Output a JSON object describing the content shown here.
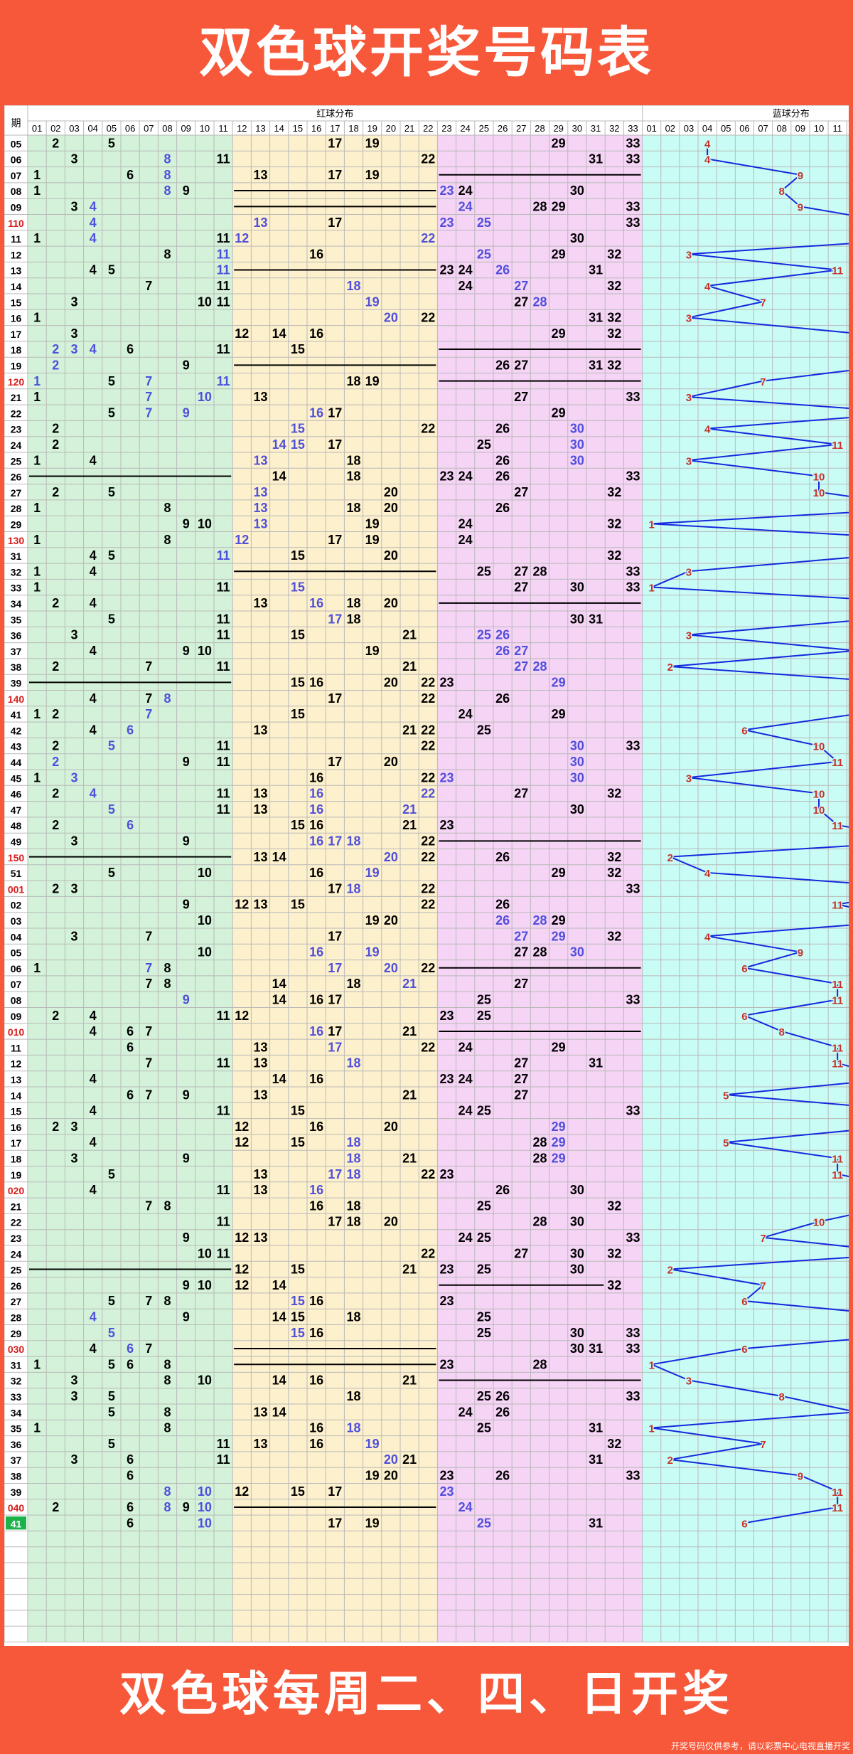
{
  "header": {
    "title": "双色球开奖号码表"
  },
  "footer": {
    "slogan": "双色球每周二、四、日开奖",
    "notice": "开奖号码仅供参考，请以彩票中心电视直播开奖"
  },
  "colors": {
    "banner": "#f7583a",
    "red_zone_a": "#d3f2d9",
    "red_zone_b": "#fdf0cc",
    "red_zone_c": "#f5d4f5",
    "blue_zone": "#c9fcf5",
    "grid_line": "#b9b9b9",
    "repeat_text": "#4f4fdc",
    "normal_text": "#000000",
    "blue_line": "#1528dd",
    "blue_num": "#c8302a",
    "period_highlight": "#d91b1b",
    "latest_period_bg": "#1bb24a"
  },
  "chart_data": {
    "type": "table",
    "title": "双色球开奖号码表",
    "columns": {
      "period": "期",
      "red_group": "红球分布",
      "blue_group": "蓝球分布"
    },
    "red_headers": [
      "01",
      "02",
      "03",
      "04",
      "05",
      "06",
      "07",
      "08",
      "09",
      "10",
      "11",
      "12",
      "13",
      "14",
      "15",
      "16",
      "17",
      "18",
      "19",
      "20",
      "21",
      "22",
      "23",
      "24",
      "25",
      "26",
      "27",
      "28",
      "29",
      "30",
      "31",
      "32",
      "33"
    ],
    "blue_headers": [
      "01",
      "02",
      "03",
      "04",
      "05",
      "06",
      "07",
      "08",
      "09",
      "10",
      "11",
      "12",
      "13",
      "14",
      "15",
      "16"
    ],
    "rows": [
      {
        "p": "05",
        "red": [
          2,
          5,
          17,
          19,
          29,
          33
        ],
        "rep": [],
        "blue": 4
      },
      {
        "p": "06",
        "red": [
          3,
          11,
          22,
          31,
          33
        ],
        "rep": [
          8
        ],
        "blue": 4
      },
      {
        "p": "07",
        "red": [
          1,
          6,
          13,
          17,
          19
        ],
        "rep": [
          8
        ],
        "blue": 9,
        "dash": [
          [
            23,
            33
          ]
        ]
      },
      {
        "p": "08",
        "red": [
          1,
          9,
          24,
          30
        ],
        "rep": [
          8,
          23
        ],
        "blue": 8,
        "dash": [
          [
            12,
            22
          ]
        ]
      },
      {
        "p": "09",
        "red": [
          3,
          28,
          29,
          33
        ],
        "rep": [
          4,
          24
        ],
        "blue": 9,
        "dash": [
          [
            12,
            22
          ]
        ]
      },
      {
        "p": "110",
        "red": [
          17,
          33
        ],
        "rep": [
          4,
          13,
          23,
          25
        ],
        "blue": 14,
        "hl": true
      },
      {
        "p": "11",
        "red": [
          1,
          11,
          30
        ],
        "rep": [
          4,
          12,
          22
        ],
        "blue": 16
      },
      {
        "p": "12",
        "red": [
          8,
          16,
          29,
          32
        ],
        "rep": [
          11,
          25
        ],
        "blue": 3
      },
      {
        "p": "13",
        "red": [
          4,
          5,
          23,
          24,
          31
        ],
        "rep": [
          11,
          26
        ],
        "blue": 11,
        "dash": [
          [
            12,
            22
          ]
        ]
      },
      {
        "p": "14",
        "red": [
          7,
          11,
          24,
          32
        ],
        "rep": [
          18,
          27
        ],
        "blue": 4
      },
      {
        "p": "15",
        "red": [
          3,
          10,
          11,
          27
        ],
        "rep": [
          19,
          28
        ],
        "blue": 7
      },
      {
        "p": "16",
        "red": [
          1,
          22,
          31,
          32
        ],
        "rep": [
          20
        ],
        "blue": 3
      },
      {
        "p": "17",
        "red": [
          3,
          12,
          14,
          16,
          29,
          32
        ],
        "rep": [],
        "blue": 12
      },
      {
        "p": "18",
        "red": [
          6,
          11,
          15
        ],
        "rep": [
          2,
          3,
          4
        ],
        "blue": 14,
        "dash": [
          [
            23,
            33
          ]
        ]
      },
      {
        "p": "19",
        "red": [
          9,
          26,
          27,
          31,
          32
        ],
        "rep": [
          2
        ],
        "blue": 14,
        "dash": [
          [
            12,
            22
          ]
        ]
      },
      {
        "p": "120",
        "red": [
          5,
          18,
          19
        ],
        "rep": [
          1,
          7,
          11
        ],
        "blue": 7,
        "hl": true,
        "dash": [
          [
            23,
            33
          ]
        ]
      },
      {
        "p": "21",
        "red": [
          1,
          13,
          27,
          33
        ],
        "rep": [
          7,
          10
        ],
        "blue": 3
      },
      {
        "p": "22",
        "red": [
          5,
          17,
          29
        ],
        "rep": [
          7,
          9,
          16
        ],
        "blue": 15
      },
      {
        "p": "23",
        "red": [
          2,
          22,
          26
        ],
        "rep": [
          15,
          30
        ],
        "blue": 4
      },
      {
        "p": "24",
        "red": [
          2,
          17,
          25
        ],
        "rep": [
          14,
          15,
          30
        ],
        "blue": 11
      },
      {
        "p": "25",
        "red": [
          1,
          4,
          18,
          26
        ],
        "rep": [
          13,
          30
        ],
        "blue": 3
      },
      {
        "p": "26",
        "red": [
          14,
          18,
          23,
          24,
          26,
          33
        ],
        "rep": [],
        "blue": 10,
        "dash": [
          [
            1,
            11
          ]
        ]
      },
      {
        "p": "27",
        "red": [
          2,
          5,
          20,
          27,
          32
        ],
        "rep": [
          13
        ],
        "blue": 10
      },
      {
        "p": "28",
        "red": [
          1,
          8,
          18,
          20,
          26
        ],
        "rep": [
          13
        ],
        "blue": 16
      },
      {
        "p": "29",
        "red": [
          9,
          10,
          19,
          24,
          32
        ],
        "rep": [
          13
        ],
        "blue": 1
      },
      {
        "p": "130",
        "red": [
          1,
          8,
          17,
          19,
          24
        ],
        "rep": [
          12
        ],
        "blue": 16,
        "hl": true
      },
      {
        "p": "31",
        "red": [
          4,
          5,
          15,
          20,
          32
        ],
        "rep": [
          11
        ],
        "blue": 13
      },
      {
        "p": "32",
        "red": [
          1,
          4,
          25,
          27,
          28,
          33
        ],
        "rep": [],
        "blue": 3,
        "dash": [
          [
            12,
            22
          ]
        ]
      },
      {
        "p": "33",
        "red": [
          1,
          11,
          27,
          30,
          33
        ],
        "rep": [
          15
        ],
        "blue": 1
      },
      {
        "p": "34",
        "red": [
          2,
          4,
          13,
          18,
          20
        ],
        "rep": [
          16
        ],
        "blue": 16,
        "dash": [
          [
            23,
            33
          ]
        ]
      },
      {
        "p": "35",
        "red": [
          5,
          11,
          18,
          30,
          31
        ],
        "rep": [
          17
        ],
        "blue": 13
      },
      {
        "p": "36",
        "red": [
          3,
          11,
          15,
          21
        ],
        "rep": [
          25,
          26
        ],
        "blue": 3
      },
      {
        "p": "37",
        "red": [
          4,
          9,
          10,
          19
        ],
        "rep": [
          26,
          27
        ],
        "blue": 12
      },
      {
        "p": "38",
        "red": [
          2,
          7,
          11,
          21
        ],
        "rep": [
          27,
          28
        ],
        "blue": 2
      },
      {
        "p": "39",
        "red": [
          15,
          16,
          20,
          22,
          23
        ],
        "rep": [
          29
        ],
        "blue": 14,
        "dash": [
          [
            1,
            11
          ]
        ]
      },
      {
        "p": "140",
        "red": [
          4,
          7,
          17,
          22,
          26
        ],
        "rep": [
          8
        ],
        "blue": 15,
        "hl": true
      },
      {
        "p": "41",
        "red": [
          1,
          2,
          15,
          24,
          29
        ],
        "rep": [
          7
        ],
        "blue": 12
      },
      {
        "p": "42",
        "red": [
          4,
          13,
          21,
          22,
          25
        ],
        "rep": [
          6
        ],
        "blue": 6
      },
      {
        "p": "43",
        "red": [
          2,
          11,
          22,
          33
        ],
        "rep": [
          5,
          30
        ],
        "blue": 10
      },
      {
        "p": "44",
        "red": [
          9,
          11,
          17,
          20
        ],
        "rep": [
          2,
          30
        ],
        "blue": 11
      },
      {
        "p": "45",
        "red": [
          1,
          16,
          22
        ],
        "rep": [
          3,
          23,
          30
        ],
        "blue": 3
      },
      {
        "p": "46",
        "red": [
          2,
          11,
          13,
          27,
          32
        ],
        "rep": [
          4,
          16,
          22
        ],
        "blue": 10
      },
      {
        "p": "47",
        "red": [
          11,
          13,
          30
        ],
        "rep": [
          5,
          16,
          21
        ],
        "blue": 10
      },
      {
        "p": "48",
        "red": [
          2,
          15,
          16,
          21,
          23
        ],
        "rep": [
          6
        ],
        "blue": 11
      },
      {
        "p": "49",
        "red": [
          3,
          9,
          22
        ],
        "rep": [
          16,
          17,
          18
        ],
        "blue": 16,
        "dash": [
          [
            23,
            33
          ]
        ]
      },
      {
        "p": "150",
        "red": [
          13,
          14,
          22,
          26,
          32
        ],
        "rep": [
          20
        ],
        "blue": 2,
        "hl": true,
        "dash": [
          [
            1,
            11
          ]
        ]
      },
      {
        "p": "51",
        "red": [
          5,
          10,
          16,
          29,
          32
        ],
        "rep": [
          19
        ],
        "blue": 4
      },
      {
        "p": "001",
        "red": [
          2,
          3,
          17,
          22,
          33
        ],
        "rep": [
          18
        ],
        "blue": 16,
        "hl": true
      },
      {
        "p": "02",
        "red": [
          9,
          12,
          13,
          15,
          22,
          26
        ],
        "rep": [],
        "blue": 11
      },
      {
        "p": "03",
        "red": [
          10,
          19,
          20,
          29
        ],
        "rep": [
          26,
          28
        ],
        "blue": 15
      },
      {
        "p": "04",
        "red": [
          3,
          7,
          17,
          32
        ],
        "rep": [
          27,
          29
        ],
        "blue": 4
      },
      {
        "p": "05",
        "red": [
          10,
          27,
          28
        ],
        "rep": [
          16,
          19,
          30
        ],
        "blue": 9
      },
      {
        "p": "06",
        "red": [
          1,
          8,
          22
        ],
        "rep": [
          7,
          17,
          20
        ],
        "blue": 6,
        "dash": [
          [
            23,
            33
          ]
        ]
      },
      {
        "p": "07",
        "red": [
          7,
          8,
          14,
          18,
          27
        ],
        "rep": [
          21
        ],
        "blue": 11
      },
      {
        "p": "08",
        "red": [
          14,
          16,
          17,
          25,
          33
        ],
        "rep": [
          9
        ],
        "blue": 11
      },
      {
        "p": "09",
        "red": [
          2,
          4,
          11,
          12,
          23,
          25
        ],
        "rep": [],
        "blue": 6
      },
      {
        "p": "010",
        "red": [
          4,
          6,
          7,
          17,
          21
        ],
        "rep": [
          16
        ],
        "blue": 8,
        "hl": true,
        "dash": [
          [
            23,
            33
          ]
        ]
      },
      {
        "p": "11",
        "red": [
          6,
          13,
          22,
          24,
          29
        ],
        "rep": [
          17
        ],
        "blue": 11
      },
      {
        "p": "12",
        "red": [
          7,
          11,
          13,
          27,
          31
        ],
        "rep": [
          18
        ],
        "blue": 11
      },
      {
        "p": "13",
        "red": [
          4,
          14,
          16,
          23,
          24,
          27
        ],
        "rep": [],
        "blue": 14
      },
      {
        "p": "14",
        "red": [
          6,
          7,
          9,
          13,
          21,
          27
        ],
        "rep": [],
        "blue": 5
      },
      {
        "p": "15",
        "red": [
          4,
          11,
          15,
          24,
          25,
          33
        ],
        "rep": [],
        "blue": 15
      },
      {
        "p": "16",
        "red": [
          2,
          3,
          12,
          16,
          20
        ],
        "rep": [
          29
        ],
        "blue": 14
      },
      {
        "p": "17",
        "red": [
          4,
          12,
          15,
          28
        ],
        "rep": [
          18,
          29
        ],
        "blue": 5
      },
      {
        "p": "18",
        "red": [
          3,
          9,
          21,
          28
        ],
        "rep": [
          18,
          29
        ],
        "blue": 11
      },
      {
        "p": "19",
        "red": [
          5,
          13,
          22,
          23
        ],
        "rep": [
          17,
          18
        ],
        "blue": 11
      },
      {
        "p": "020",
        "red": [
          4,
          11,
          13,
          26,
          30
        ],
        "rep": [
          16
        ],
        "blue": 15,
        "hl": true
      },
      {
        "p": "21",
        "red": [
          7,
          8,
          16,
          18,
          25,
          32
        ],
        "rep": [],
        "blue": 14
      },
      {
        "p": "22",
        "red": [
          11,
          17,
          18,
          20,
          28,
          30
        ],
        "rep": [],
        "blue": 10
      },
      {
        "p": "23",
        "red": [
          9,
          12,
          13,
          24,
          25,
          33
        ],
        "rep": [],
        "blue": 7
      },
      {
        "p": "24",
        "red": [
          10,
          11,
          22,
          27,
          30,
          32
        ],
        "rep": [],
        "blue": 15
      },
      {
        "p": "25",
        "red": [
          12,
          15,
          21,
          23,
          25,
          30
        ],
        "rep": [],
        "blue": 2,
        "dash": [
          [
            1,
            11
          ]
        ]
      },
      {
        "p": "26",
        "red": [
          9,
          10,
          12,
          14,
          32
        ],
        "rep": [],
        "blue": 7,
        "dash": [
          [
            23,
            31
          ]
        ]
      },
      {
        "p": "27",
        "red": [
          5,
          7,
          8,
          16,
          23
        ],
        "rep": [
          15
        ],
        "blue": 6
      },
      {
        "p": "28",
        "red": [
          9,
          14,
          15,
          18,
          25
        ],
        "rep": [
          4
        ],
        "blue": 15
      },
      {
        "p": "29",
        "red": [
          16,
          25,
          30,
          33
        ],
        "rep": [
          5,
          15
        ],
        "blue": 16
      },
      {
        "p": "030",
        "red": [
          4,
          7,
          30,
          31,
          33
        ],
        "rep": [
          6
        ],
        "blue": 6,
        "hl": true,
        "dash": [
          [
            12,
            22
          ]
        ]
      },
      {
        "p": "31",
        "red": [
          1,
          5,
          6,
          8,
          23,
          28
        ],
        "rep": [],
        "blue": 1,
        "dash": [
          [
            12,
            22
          ]
        ]
      },
      {
        "p": "32",
        "red": [
          3,
          8,
          10,
          14,
          16,
          21
        ],
        "rep": [],
        "blue": 3,
        "dash": [
          [
            23,
            33
          ]
        ]
      },
      {
        "p": "33",
        "red": [
          3,
          5,
          18,
          25,
          26,
          33
        ],
        "rep": [],
        "blue": 8
      },
      {
        "p": "34",
        "red": [
          5,
          8,
          13,
          14,
          24,
          26
        ],
        "rep": [],
        "blue": 12
      },
      {
        "p": "35",
        "red": [
          1,
          8,
          16,
          25,
          31
        ],
        "rep": [
          18
        ],
        "blue": 1
      },
      {
        "p": "36",
        "red": [
          5,
          11,
          13,
          16,
          32
        ],
        "rep": [
          19
        ],
        "blue": 7
      },
      {
        "p": "37",
        "red": [
          3,
          6,
          11,
          21,
          31
        ],
        "rep": [
          20
        ],
        "blue": 2
      },
      {
        "p": "38",
        "red": [
          6,
          19,
          20,
          23,
          26,
          33
        ],
        "rep": [],
        "blue": 9
      },
      {
        "p": "39",
        "red": [
          12,
          15,
          17
        ],
        "rep": [
          8,
          10,
          23
        ],
        "blue": 11
      },
      {
        "p": "040",
        "red": [
          2,
          6,
          9
        ],
        "rep": [
          8,
          10,
          24
        ],
        "blue": 11,
        "hl": true,
        "dash": [
          [
            12,
            22
          ]
        ]
      },
      {
        "p": "41",
        "red": [
          6,
          17,
          19,
          31
        ],
        "rep": [
          10,
          25
        ],
        "blue": 6,
        "latest": true
      }
    ],
    "empty_rows": 7
  }
}
